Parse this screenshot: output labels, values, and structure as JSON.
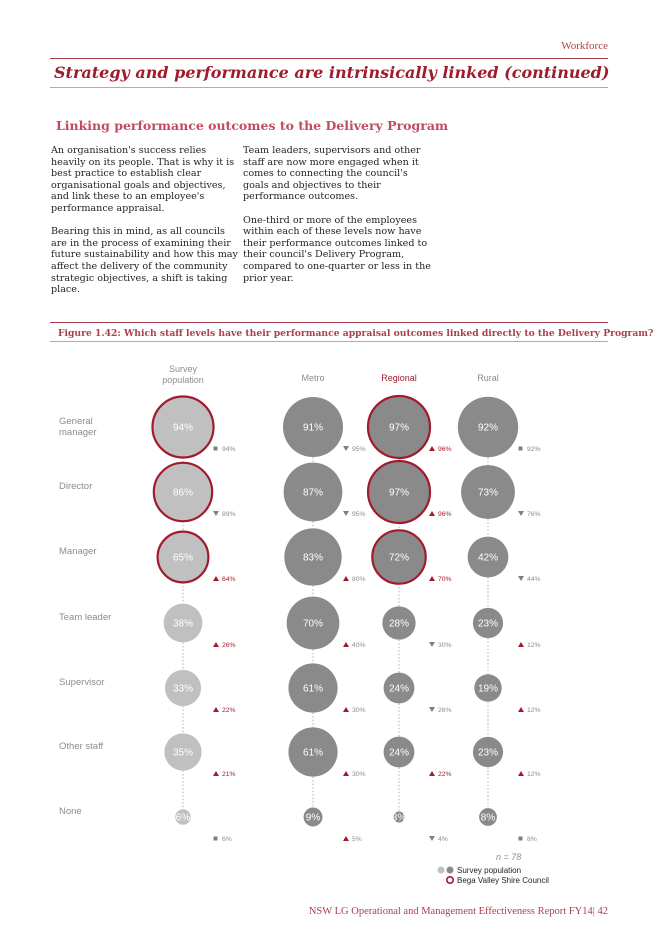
{
  "header": {
    "section": "Workforce",
    "title": "Strategy and performance are intrinsically linked (continued)"
  },
  "subheading": "Linking performance outcomes to the Delivery Program",
  "body": {
    "col1": [
      "An organisation's success relies heavily on its people. That is why it is best practice to establish clear organisational goals and objectives, and link these to an employee's performance appraisal.",
      "Bearing this in mind, as all councils are in the process of examining their future sustainability and how this may affect the delivery of the community strategic objectives, a shift is taking place."
    ],
    "col2": [
      "Team leaders, supervisors and other staff are now more engaged when it comes to connecting the council's goals and objectives to their performance outcomes.",
      "One-third or more of the employees within each of these levels now have their performance outcomes linked to their council's Delivery Program, compared to one-quarter or less in the prior year."
    ]
  },
  "figure_caption": "Figure 1.42: Which staff levels have their performance appraisal outcomes linked directly to the Delivery Program?",
  "chart_data": {
    "type": "bubble",
    "columns": [
      "Survey population",
      "Metro",
      "Regional",
      "Rural"
    ],
    "rows": [
      "General manager",
      "Director",
      "Manager",
      "Team leader",
      "Supervisor",
      "Other staff",
      "None"
    ],
    "values": {
      "Survey population": [
        94,
        86,
        65,
        38,
        33,
        35,
        6
      ],
      "Metro": [
        91,
        87,
        83,
        70,
        61,
        61,
        9
      ],
      "Regional": [
        97,
        97,
        72,
        28,
        24,
        24,
        3
      ],
      "Rural": [
        92,
        73,
        42,
        23,
        19,
        23,
        8
      ]
    },
    "prior": {
      "Survey population": [
        "94%",
        "89%",
        "64%",
        "26%",
        "22%",
        "21%",
        "6%"
      ],
      "Metro": [
        "95%",
        "95%",
        "80%",
        "40%",
        "30%",
        "30%",
        "5%"
      ],
      "Regional": [
        "96%",
        "96%",
        "70%",
        "30%",
        "26%",
        "22%",
        "4%"
      ],
      "Rural": [
        "92%",
        "76%",
        "44%",
        "12%",
        "12%",
        "12%",
        "8%"
      ]
    },
    "change": {
      "Survey population": [
        "same",
        "down",
        "up",
        "up",
        "up",
        "up",
        "same"
      ],
      "Metro": [
        "down",
        "down",
        "up",
        "up",
        "up",
        "up",
        "up"
      ],
      "Regional": [
        "up",
        "up",
        "up",
        "down",
        "down",
        "up",
        "down"
      ],
      "Rural": [
        "same",
        "down",
        "down",
        "up",
        "up",
        "up",
        "same"
      ]
    },
    "highlight": {
      "Survey population": [
        true,
        true,
        true,
        false,
        false,
        false,
        false
      ],
      "Metro": [
        false,
        false,
        false,
        false,
        false,
        false,
        false
      ],
      "Regional": [
        true,
        true,
        true,
        false,
        false,
        false,
        false
      ],
      "Rural": [
        false,
        false,
        false,
        false,
        false,
        false,
        false
      ]
    },
    "n_label": "n = 78",
    "legend": [
      "Survey population",
      "Bega Valley Shire Council"
    ]
  },
  "colors": {
    "survey_fill": "#c0c0c0",
    "group_fill": "#8a8a8a",
    "highlight": "#a01c2c",
    "up": "#a01c2c",
    "down": "#7f7f7f",
    "same": "#7f7f7f"
  },
  "footer": "NSW LG Operational and Management Effectiveness Report FY14| 42"
}
